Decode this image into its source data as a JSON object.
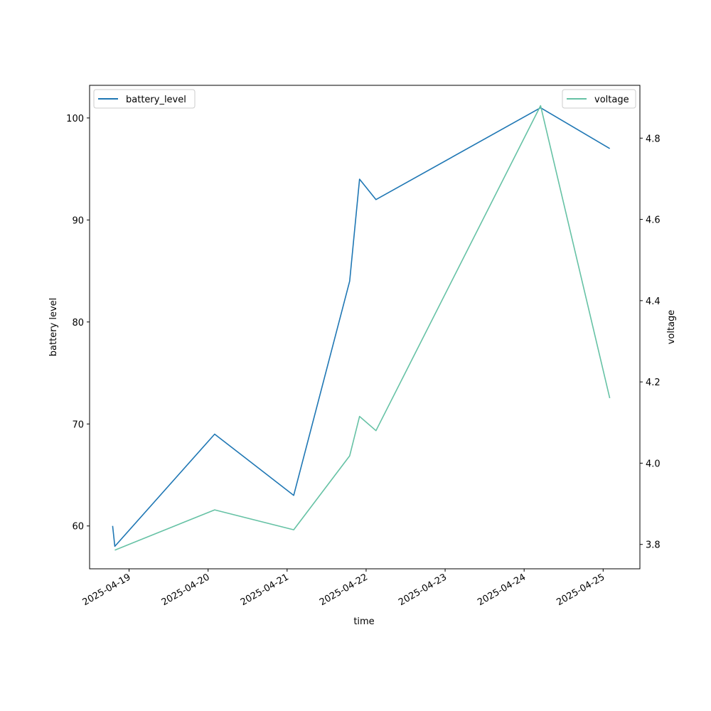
{
  "chart_data": {
    "type": "line",
    "xlabel": "time",
    "ylabel_left": "battery level",
    "ylabel_right": "voltage",
    "x_tick_labels": [
      "2025-04-19",
      "2025-04-20",
      "2025-04-21",
      "2025-04-22",
      "2025-04-23",
      "2025-04-24",
      "2025-04-25"
    ],
    "xlim": [
      "2025-04-18T12:00",
      "2025-04-25T11:10"
    ],
    "left_axis": {
      "ylim": [
        55.8,
        103.2
      ],
      "ticks": [
        60,
        70,
        80,
        90,
        100
      ]
    },
    "right_axis": {
      "ylim": [
        3.74,
        4.93
      ],
      "ticks": [
        3.8,
        4.0,
        4.2,
        4.4,
        4.6,
        4.8
      ]
    },
    "x": [
      "2025-04-18T19:00",
      "2025-04-18T19:40",
      "2025-04-20T02:00",
      "2025-04-21T02:00",
      "2025-04-21T19:00",
      "2025-04-21T22:00",
      "2025-04-22T03:00",
      "2025-04-24T05:00",
      "2025-04-25T02:00"
    ],
    "series": [
      {
        "name": "battery_level",
        "axis": "left",
        "color": "#1f77b4",
        "x": [
          "2025-04-18T19:00",
          "2025-04-18T19:40",
          "2025-04-20T02:00",
          "2025-04-21T02:00",
          "2025-04-21T19:00",
          "2025-04-21T22:00",
          "2025-04-22T03:00",
          "2025-04-24T05:00",
          "2025-04-25T02:00"
        ],
        "values": [
          60,
          58,
          69,
          63,
          84,
          94,
          92,
          101,
          97
        ]
      },
      {
        "name": "voltage",
        "axis": "right",
        "color": "#66c2a5",
        "x": [
          "2025-04-18T19:40",
          "2025-04-20T02:00",
          "2025-04-21T02:00",
          "2025-04-21T19:00",
          "2025-04-21T22:00",
          "2025-04-22T03:00",
          "2025-04-24T05:00",
          "2025-04-25T02:00"
        ],
        "values": [
          3.786,
          3.885,
          3.836,
          4.018,
          4.115,
          4.08,
          4.88,
          4.16
        ]
      }
    ],
    "legends": [
      {
        "placement": "upper-left",
        "entries": [
          "battery_level"
        ]
      },
      {
        "placement": "upper-right",
        "entries": [
          "voltage"
        ]
      }
    ],
    "grid": false
  }
}
